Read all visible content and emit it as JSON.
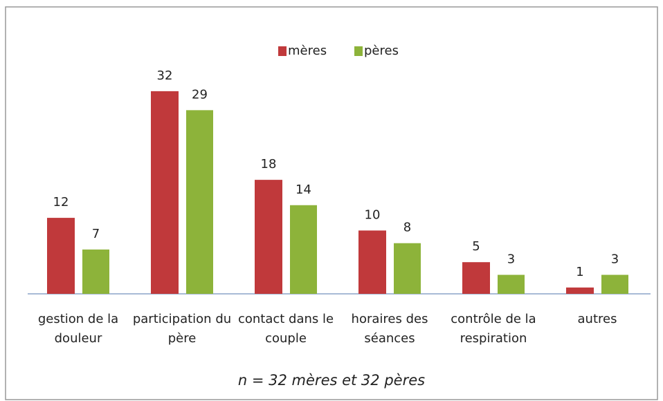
{
  "chart_data": {
    "type": "bar",
    "categories": [
      "gestion de la douleur",
      "participation du père",
      "contact dans le couple",
      "horaires des séances",
      "contrôle de la respiration",
      "autres"
    ],
    "series": [
      {
        "name": "mères",
        "color": "#c0393b",
        "values": [
          12,
          32,
          18,
          10,
          5,
          1
        ]
      },
      {
        "name": "pères",
        "color": "#8db33a",
        "values": [
          7,
          29,
          14,
          8,
          3,
          3
        ]
      }
    ],
    "legend": "top",
    "footnote": "n = 32 mères et 32 pères"
  }
}
